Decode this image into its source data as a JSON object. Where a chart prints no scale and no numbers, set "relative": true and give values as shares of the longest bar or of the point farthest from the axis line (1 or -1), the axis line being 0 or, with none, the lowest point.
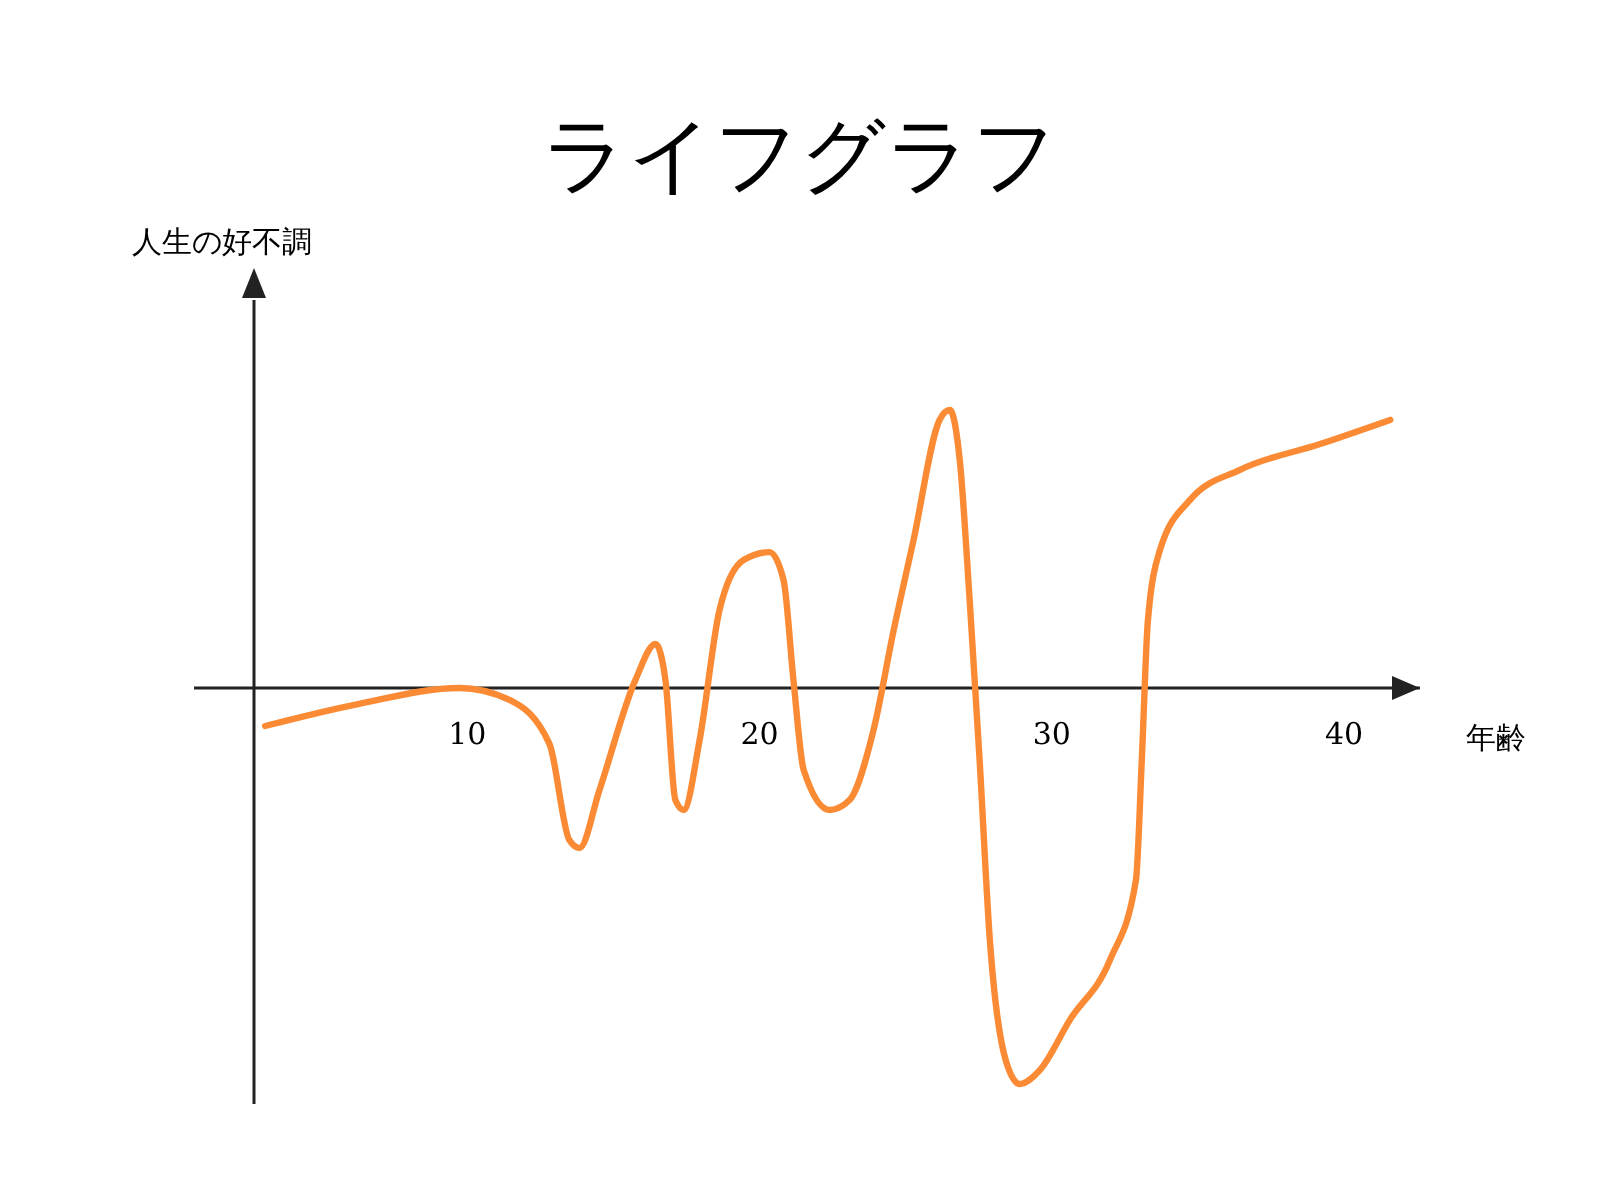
{
  "chart_data": {
    "type": "line",
    "title": "ライフグラフ",
    "xlabel": "年齢",
    "ylabel": "人生の好不調",
    "relative": true,
    "xlim": [
      2.7,
      42.6
    ],
    "xticks": [
      10,
      20,
      30,
      40
    ],
    "grid": false,
    "line_style": "solid",
    "series": [
      {
        "color": "#fb8a35",
        "x": [
          3.08,
          6.3,
          9.73,
          11.44,
          12.81,
          13.49,
          13.84,
          14.52,
          15.75,
          16.44,
          16.78,
          17.12,
          17.4,
          17.95,
          18.63,
          19.45,
          20.34,
          20.82,
          21.16,
          21.51,
          22.4,
          23.08,
          23.9,
          24.59,
          25.27,
          26.16,
          26.51,
          26.85,
          27.19,
          27.53,
          27.88,
          28.42,
          28.9,
          29.59,
          30.62,
          31.99,
          32.88,
          33.08,
          33.29,
          33.7,
          34.73,
          36.44,
          39.18,
          41.58
        ],
        "values": [
          -0.096,
          -0.04,
          0,
          -0.03,
          -0.141,
          -0.384,
          -0.404,
          -0.258,
          0.02,
          0.111,
          0.02,
          -0.283,
          -0.308,
          -0.131,
          0.197,
          0.323,
          0.343,
          0.273,
          0.02,
          -0.207,
          -0.308,
          -0.283,
          -0.106,
          0.146,
          0.374,
          0.677,
          0.702,
          0.576,
          0.222,
          -0.182,
          -0.636,
          -0.939,
          -1,
          -0.965,
          -0.838,
          -0.687,
          -0.485,
          -0.182,
          0.172,
          0.348,
          0.475,
          0.551,
          0.616,
          0.677
        ]
      }
    ]
  }
}
